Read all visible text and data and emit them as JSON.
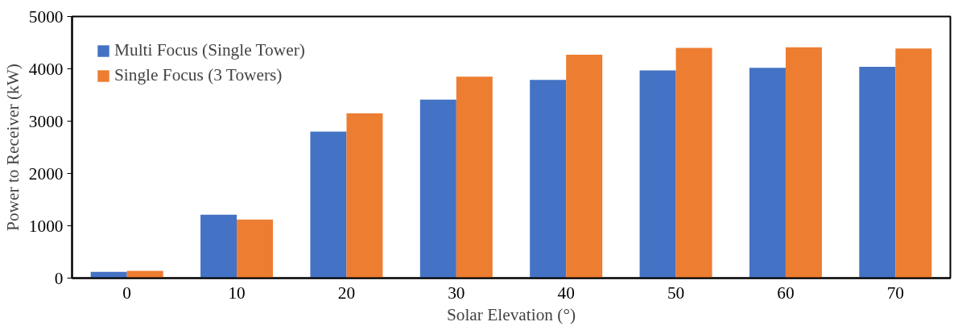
{
  "chart_data": {
    "type": "bar",
    "xlabel": "Solar Elevation (°)",
    "ylabel": "Power to Receiver (kW)",
    "categories": [
      "0",
      "10",
      "20",
      "30",
      "40",
      "50",
      "60",
      "70"
    ],
    "series": [
      {
        "name": "Multi Focus (Single Tower)",
        "color": "#4472c4",
        "values": [
          120,
          1210,
          2800,
          3410,
          3790,
          3970,
          4020,
          4040
        ]
      },
      {
        "name": "Single Focus (3 Towers)",
        "color": "#ed7d31",
        "values": [
          140,
          1120,
          3150,
          3850,
          4270,
          4400,
          4410,
          4390
        ]
      }
    ],
    "ylim": [
      0,
      5000
    ],
    "yticks": [
      0,
      1000,
      2000,
      3000,
      4000,
      5000
    ],
    "grid": false,
    "legend": "top left"
  }
}
